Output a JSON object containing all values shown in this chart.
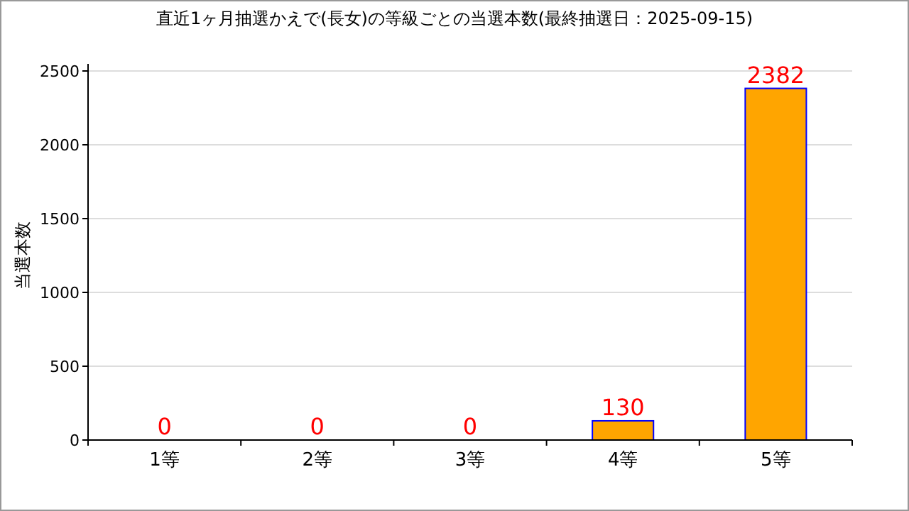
{
  "chart_data": {
    "type": "bar",
    "title": "直近1ヶ月抽選かえで(長女)の等級ごとの当選本数(最終抽選日：2025-09-15)",
    "ylabel": "当選本数",
    "categories": [
      "1等",
      "2等",
      "3等",
      "4等",
      "5等"
    ],
    "values": [
      0,
      0,
      0,
      130,
      2382
    ],
    "color": "#ffa500",
    "ylim": [
      0,
      2500
    ],
    "yticks": [
      0,
      500,
      1000,
      1500,
      2000,
      2500
    ],
    "grid": "y",
    "data_labels": true
  }
}
